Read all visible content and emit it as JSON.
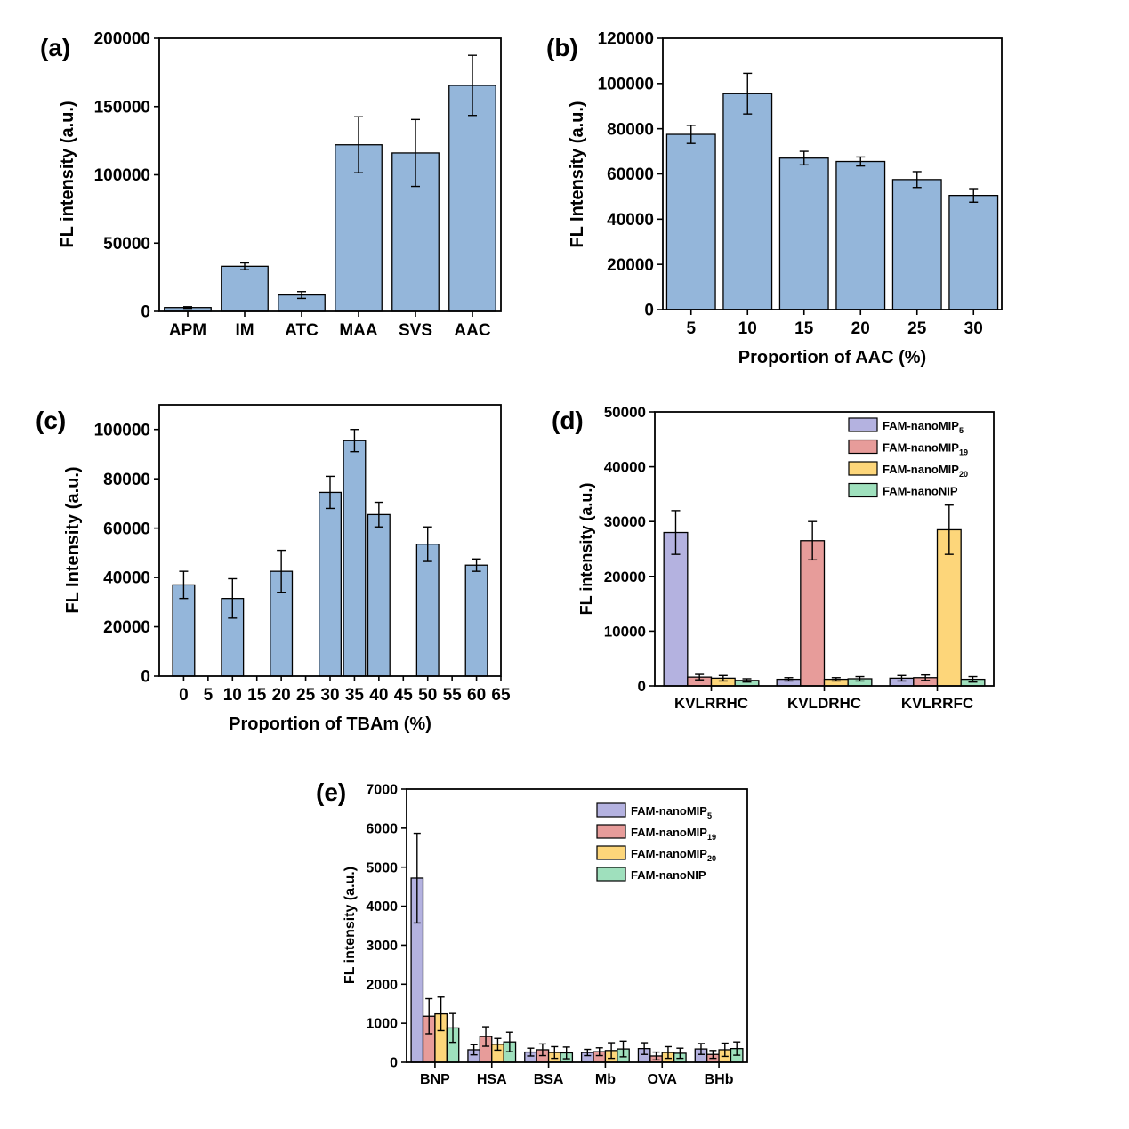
{
  "colors": {
    "bar_blue": "#94b6da",
    "mip5": "#b4b2e0",
    "mip19": "#e79c9a",
    "mip20": "#fdd67a",
    "nip": "#9fe0bd",
    "axis": "#000000"
  },
  "chart_data": [
    {
      "id": "a",
      "type": "bar",
      "panel_label": "(a)",
      "title": "",
      "xlabel": "",
      "ylabel": "FL intensity (a.u.)",
      "ylim": [
        0,
        200000
      ],
      "yticks": [
        0,
        50000,
        100000,
        150000,
        200000
      ],
      "categories": [
        "APM",
        "IM",
        "ATC",
        "MAA",
        "SVS",
        "AAC"
      ],
      "series": [
        {
          "name": "FL intensity",
          "color_key": "bar_blue",
          "values": [
            2800,
            33000,
            12000,
            122000,
            116000,
            165500
          ],
          "errors": [
            600,
            2500,
            2500,
            20500,
            24500,
            22000
          ]
        }
      ]
    },
    {
      "id": "b",
      "type": "bar",
      "panel_label": "(b)",
      "title": "",
      "xlabel": "Proportion of AAC (%)",
      "ylabel": "FL Intensity (a.u.)",
      "ylim": [
        0,
        120000
      ],
      "yticks": [
        0,
        20000,
        40000,
        60000,
        80000,
        100000,
        120000
      ],
      "categories": [
        "5",
        "10",
        "15",
        "20",
        "25",
        "30"
      ],
      "series": [
        {
          "name": "FL Intensity",
          "color_key": "bar_blue",
          "values": [
            77500,
            95500,
            67000,
            65500,
            57500,
            50500
          ],
          "errors": [
            4000,
            9000,
            3000,
            2000,
            3500,
            3000
          ]
        }
      ]
    },
    {
      "id": "c",
      "type": "bar",
      "panel_label": "(c)",
      "title": "",
      "xlabel": "Proportion of TBAm (%)",
      "ylabel": "FL Intensity (a.u.)",
      "ylim": [
        0,
        110000
      ],
      "xlim": [
        -5,
        65
      ],
      "yticks": [
        0,
        20000,
        40000,
        60000,
        80000,
        100000
      ],
      "xticks": [
        0,
        5,
        10,
        15,
        20,
        25,
        30,
        35,
        40,
        45,
        50,
        55,
        60,
        65
      ],
      "x": [
        0,
        10,
        20,
        30,
        35,
        40,
        50,
        60
      ],
      "series": [
        {
          "name": "FL Intensity",
          "color_key": "bar_blue",
          "values": [
            37000,
            31500,
            42500,
            74500,
            95500,
            65500,
            53500,
            45000
          ],
          "errors": [
            5500,
            8000,
            8500,
            6500,
            4500,
            5000,
            7000,
            2500
          ]
        }
      ]
    },
    {
      "id": "d",
      "type": "bar",
      "panel_label": "(d)",
      "title": "",
      "xlabel": "",
      "ylabel": "FL intensity (a.u.)",
      "ylim": [
        0,
        50000
      ],
      "yticks": [
        0,
        10000,
        20000,
        30000,
        40000,
        50000
      ],
      "categories": [
        "KVLRRHC",
        "KVLDRHC",
        "KVLRRFC"
      ],
      "legend_position": "top-right",
      "series": [
        {
          "name": "FAM-nanoMIP",
          "sub": "5",
          "color_key": "mip5",
          "values": [
            28000,
            1200,
            1400
          ],
          "errors": [
            4000,
            300,
            500
          ]
        },
        {
          "name": "FAM-nanoMIP",
          "sub": "19",
          "color_key": "mip19",
          "values": [
            1600,
            26500,
            1500
          ],
          "errors": [
            500,
            3500,
            500
          ]
        },
        {
          "name": "FAM-nanoMIP",
          "sub": "20",
          "color_key": "mip20",
          "values": [
            1400,
            1200,
            28500
          ],
          "errors": [
            500,
            300,
            4500
          ]
        },
        {
          "name": "FAM-nanoNIP",
          "sub": "",
          "color_key": "nip",
          "values": [
            1000,
            1300,
            1200
          ],
          "errors": [
            300,
            400,
            500
          ]
        }
      ]
    },
    {
      "id": "e",
      "type": "bar",
      "panel_label": "(e)",
      "title": "",
      "xlabel": "",
      "ylabel": "FL intensity (a.u.)",
      "ylim": [
        0,
        7000
      ],
      "yticks": [
        0,
        1000,
        2000,
        3000,
        4000,
        5000,
        6000,
        7000
      ],
      "categories": [
        "BNP",
        "HSA",
        "BSA",
        "Mb",
        "OVA",
        "BHb"
      ],
      "legend_position": "top-right",
      "series": [
        {
          "name": "FAM-nanoMIP",
          "sub": "5",
          "color_key": "mip5",
          "values": [
            4720,
            320,
            260,
            250,
            350,
            340
          ],
          "errors": [
            1150,
            130,
            100,
            80,
            150,
            140
          ]
        },
        {
          "name": "FAM-nanoMIP",
          "sub": "19",
          "color_key": "mip19",
          "values": [
            1180,
            660,
            320,
            270,
            160,
            200
          ],
          "errors": [
            450,
            250,
            150,
            100,
            100,
            100
          ]
        },
        {
          "name": "FAM-nanoMIP",
          "sub": "20",
          "color_key": "mip20",
          "values": [
            1240,
            460,
            250,
            300,
            250,
            320
          ],
          "errors": [
            430,
            150,
            150,
            200,
            150,
            170
          ]
        },
        {
          "name": "FAM-nanoNIP",
          "sub": "",
          "color_key": "nip",
          "values": [
            880,
            520,
            240,
            340,
            230,
            350
          ],
          "errors": [
            370,
            250,
            150,
            200,
            130,
            170
          ]
        }
      ]
    }
  ]
}
